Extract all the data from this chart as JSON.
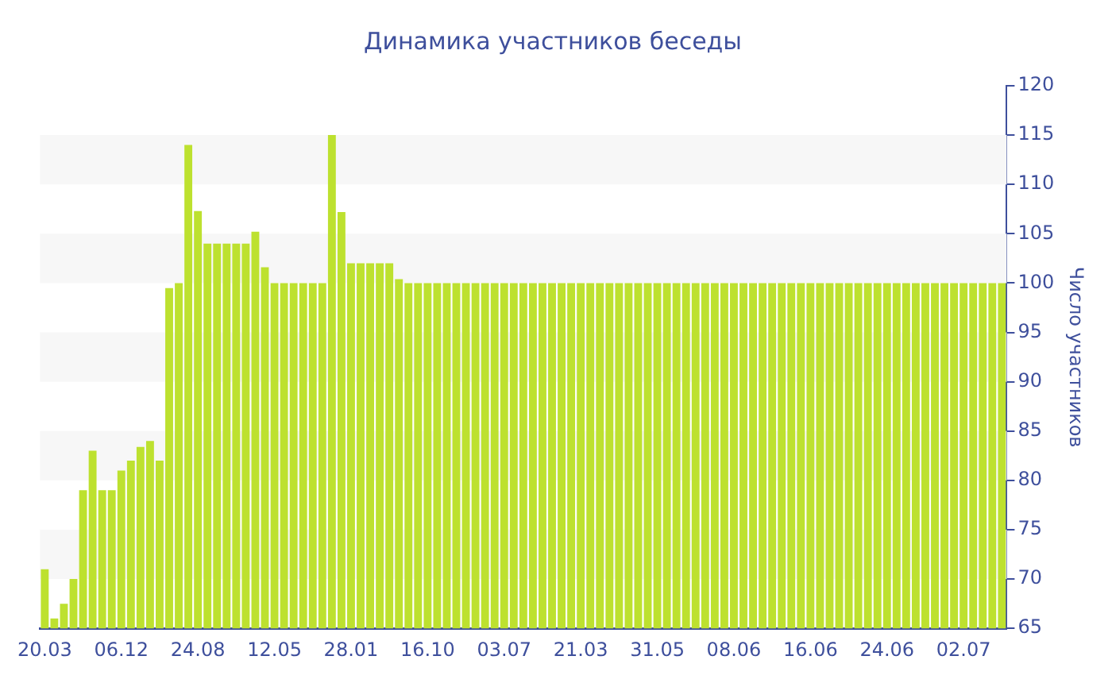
{
  "chart_data": {
    "type": "bar",
    "title": "Динамика участников беседы",
    "ylabel": "Число участников",
    "categories": [
      "20.03",
      null,
      null,
      null,
      null,
      null,
      null,
      null,
      "06.12",
      null,
      null,
      null,
      null,
      null,
      null,
      null,
      "24.08",
      null,
      null,
      null,
      null,
      null,
      null,
      null,
      "12.05",
      null,
      null,
      null,
      null,
      null,
      null,
      null,
      "28.01",
      null,
      null,
      null,
      null,
      null,
      null,
      null,
      "16.10",
      null,
      null,
      null,
      null,
      null,
      null,
      null,
      "03.07",
      null,
      null,
      null,
      null,
      null,
      null,
      null,
      "21.03",
      null,
      null,
      null,
      null,
      null,
      null,
      null,
      "31.05",
      null,
      null,
      null,
      null,
      null,
      null,
      null,
      "08.06",
      null,
      null,
      null,
      null,
      null,
      null,
      null,
      "16.06",
      null,
      null,
      null,
      null,
      null,
      null,
      null,
      "24.06",
      null,
      null,
      null,
      null,
      null,
      null,
      null,
      "02.07",
      null,
      null,
      null,
      null
    ],
    "values": [
      71,
      66,
      67.5,
      70,
      79,
      83,
      79,
      79,
      81,
      82,
      83.4,
      84,
      82,
      99.5,
      100,
      114,
      107.3,
      104,
      104,
      104,
      104,
      104,
      105.2,
      101.6,
      100,
      100,
      100,
      100,
      100,
      100,
      115,
      107.2,
      102,
      102,
      102,
      102,
      102,
      100.4,
      100,
      100,
      100,
      100,
      100,
      100,
      100,
      100,
      100,
      100,
      100,
      100,
      100,
      100,
      100,
      100,
      100,
      100,
      100,
      100,
      100,
      100,
      100,
      100,
      100,
      100,
      100,
      100,
      100,
      100,
      100,
      100,
      100,
      100,
      100,
      100,
      100,
      100,
      100,
      100,
      100,
      100,
      100,
      100,
      100,
      100,
      100,
      100,
      100,
      100,
      100,
      100,
      100,
      100,
      100,
      100,
      100,
      100,
      100,
      100,
      100,
      100,
      100
    ],
    "color": "#bde12f",
    "ylim": [
      65,
      120
    ],
    "yticks": [
      65,
      70,
      75,
      80,
      85,
      90,
      95,
      100,
      105,
      110,
      115,
      120
    ],
    "bands": [
      {
        "axis": "y",
        "from": 70,
        "to": 75,
        "color": "#f7f7f7"
      },
      {
        "axis": "y",
        "from": 80,
        "to": 85,
        "color": "#f7f7f7"
      },
      {
        "axis": "y",
        "from": 90,
        "to": 95,
        "color": "#f7f7f7"
      },
      {
        "axis": "y",
        "from": 100,
        "to": 105,
        "color": "#f7f7f7"
      },
      {
        "axis": "y",
        "from": 110,
        "to": 115,
        "color": "#f7f7f7"
      }
    ],
    "grid": false,
    "legend": false
  }
}
